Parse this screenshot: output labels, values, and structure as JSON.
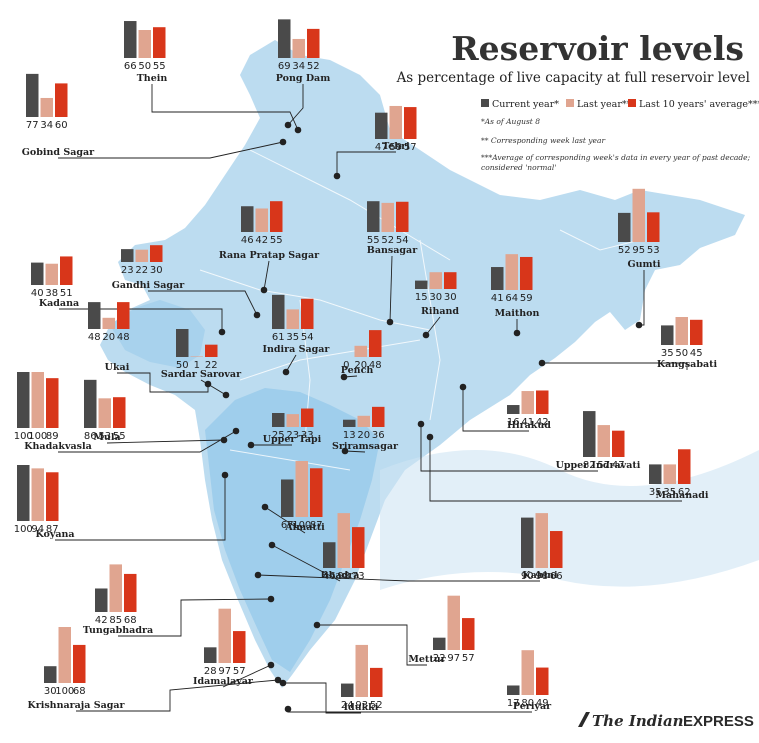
{
  "title": "Reservoir levels",
  "subtitle": "As percentage of live capacity at full reservoir level",
  "legend": [
    {
      "label": "Current year*",
      "color": "#4a4a4a"
    },
    {
      "label": "Last year**",
      "color": "#e0a590"
    },
    {
      "label": "Last 10 years' average***",
      "color": "#d8361a"
    }
  ],
  "notes": [
    "*As of August 8",
    "** Corresponding week last year",
    "***Average of corresponding week's data in every year of past decade;",
    "considered 'normal'"
  ],
  "brand": {
    "italic": "The Indian",
    "caps": "EXPRESS"
  },
  "colors": {
    "current": "#4a4a4a",
    "last_year": "#e0a590",
    "avg": "#d8361a",
    "map": "#bcdcf0",
    "map_dark": "#93c8ea",
    "line": "#222222"
  },
  "chart_data": {
    "type": "bar",
    "series": [
      {
        "name": "Current year*"
      },
      {
        "name": "Last year**"
      },
      {
        "name": "Last 10 years' average***"
      }
    ],
    "ylim": [
      0,
      100
    ],
    "reservoirs": [
      {
        "name": "Thein",
        "values": [
          66,
          50,
          55
        ]
      },
      {
        "name": "Pong Dam",
        "values": [
          69,
          34,
          52
        ]
      },
      {
        "name": "Gobind Sagar",
        "values": [
          77,
          34,
          60
        ]
      },
      {
        "name": "Tehri",
        "values": [
          47,
          59,
          57
        ]
      },
      {
        "name": "Rana Pratap Sagar",
        "values": [
          46,
          42,
          55
        ]
      },
      {
        "name": "Gandhi Sagar",
        "values": [
          23,
          22,
          30
        ]
      },
      {
        "name": "Bansagar",
        "values": [
          55,
          52,
          54
        ]
      },
      {
        "name": "Gumti",
        "values": [
          52,
          95,
          53
        ]
      },
      {
        "name": "Kadana",
        "values": [
          40,
          38,
          51
        ]
      },
      {
        "name": "Rihand",
        "values": [
          15,
          30,
          30
        ]
      },
      {
        "name": "Maithon",
        "values": [
          41,
          64,
          59
        ]
      },
      {
        "name": "Indira Sagar",
        "values": [
          61,
          35,
          54
        ]
      },
      {
        "name": "Ukai",
        "values": [
          48,
          20,
          48
        ]
      },
      {
        "name": "Sardar Sarovar",
        "values": [
          50,
          1,
          22
        ]
      },
      {
        "name": "Pench",
        "values": [
          0,
          20,
          48
        ]
      },
      {
        "name": "Kangsabati",
        "values": [
          35,
          50,
          45
        ]
      },
      {
        "name": "Khadakvasla",
        "values": [
          100,
          100,
          89
        ]
      },
      {
        "name": "Mula",
        "values": [
          86,
          53,
          55
        ]
      },
      {
        "name": "Upper Tapi",
        "values": [
          25,
          23,
          33
        ]
      },
      {
        "name": "Sriramsagar",
        "values": [
          13,
          20,
          36
        ]
      },
      {
        "name": "Hirakud",
        "values": [
          16,
          41,
          42
        ]
      },
      {
        "name": "Upper Indravati",
        "values": [
          82,
          57,
          47
        ]
      },
      {
        "name": "Mahanadi",
        "values": [
          35,
          35,
          62
        ]
      },
      {
        "name": "Koyana",
        "values": [
          100,
          94,
          87
        ]
      },
      {
        "name": "Almatti",
        "values": [
          67,
          100,
          87
        ]
      },
      {
        "name": "Bhadra",
        "values": [
          46,
          98,
          73
        ]
      },
      {
        "name": "Kabini",
        "values": [
          90,
          98,
          66
        ]
      },
      {
        "name": "Tungabhadra",
        "values": [
          42,
          85,
          68
        ]
      },
      {
        "name": "Mettur",
        "values": [
          22,
          97,
          57
        ]
      },
      {
        "name": "Idamalayar",
        "values": [
          28,
          97,
          57
        ]
      },
      {
        "name": "Krishnaraja Sagar",
        "values": [
          30,
          100,
          68
        ]
      },
      {
        "name": "Idukki",
        "values": [
          24,
          93,
          52
        ]
      },
      {
        "name": "Periyar",
        "values": [
          17,
          80,
          49
        ]
      }
    ]
  }
}
